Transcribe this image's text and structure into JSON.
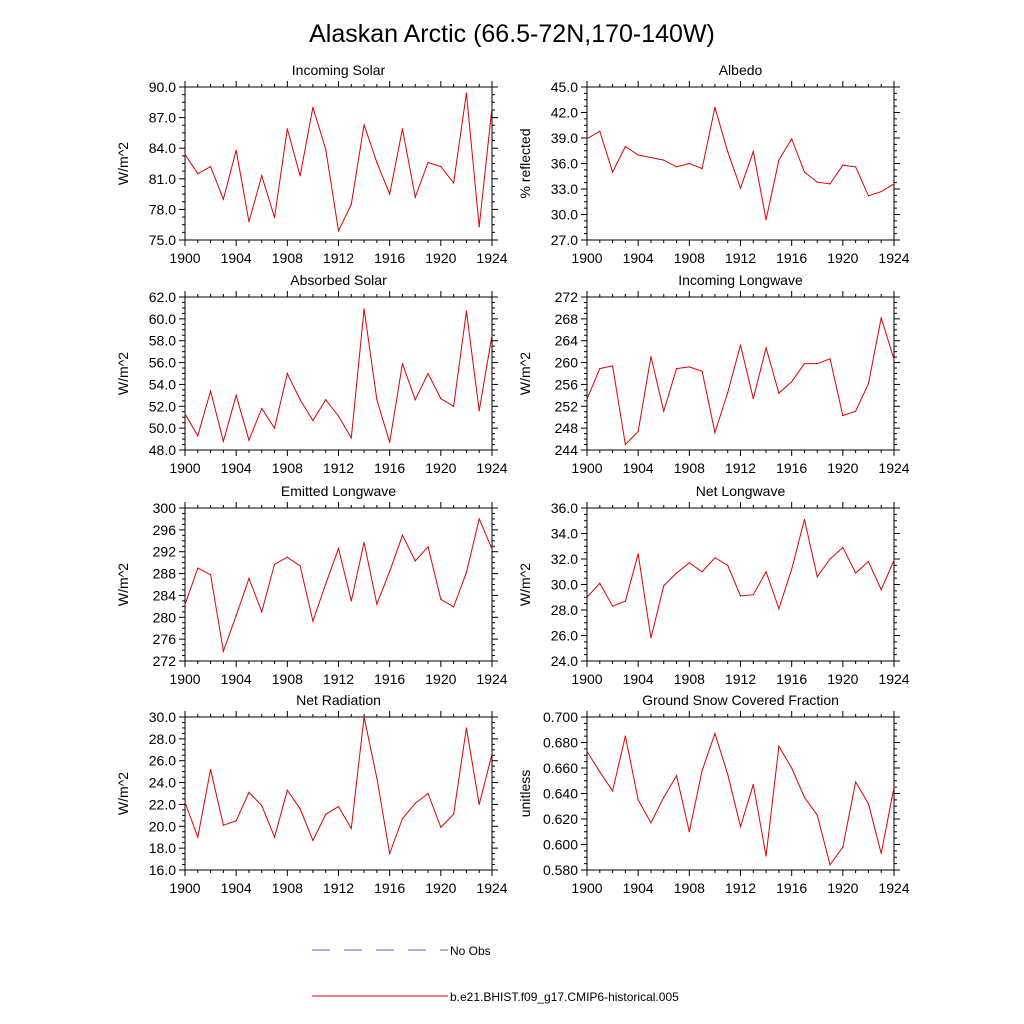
{
  "figure": {
    "title": "Alaskan Arctic (66.5-72N,170-140W)"
  },
  "legend": {
    "obs_label": "No Obs",
    "model_label": "b.e21.BHIST.f09_g17.CMIP6-historical.005",
    "obs_color": "#5b5bc8",
    "model_color": "#e00000"
  },
  "chart_data": [
    {
      "type": "line",
      "title": "Incoming Solar",
      "ylabel": "W/m^2",
      "xlim": [
        1900,
        1924
      ],
      "ylim": [
        75.0,
        90.0
      ],
      "xticks": [
        "1900",
        "1904",
        "1908",
        "1912",
        "1916",
        "1920",
        "1924"
      ],
      "yticks": [
        "75.0",
        "78.0",
        "81.0",
        "84.0",
        "87.0",
        "90.0"
      ],
      "x": [
        1900,
        1901,
        1902,
        1903,
        1904,
        1905,
        1906,
        1907,
        1908,
        1909,
        1910,
        1911,
        1912,
        1913,
        1914,
        1915,
        1916,
        1917,
        1918,
        1919,
        1920,
        1921,
        1922,
        1923,
        1924
      ],
      "values": [
        83.4,
        81.5,
        82.2,
        79.0,
        83.8,
        76.8,
        81.3,
        77.2,
        85.9,
        81.3,
        88.0,
        83.9,
        75.9,
        78.5,
        86.3,
        82.6,
        79.5,
        85.9,
        79.2,
        82.6,
        82.2,
        80.6,
        89.4,
        76.3,
        88.0
      ]
    },
    {
      "type": "line",
      "title": "Albedo",
      "ylabel": "% reflected",
      "xlim": [
        1900,
        1924
      ],
      "ylim": [
        27.0,
        45.0
      ],
      "xticks": [
        "1900",
        "1904",
        "1908",
        "1912",
        "1916",
        "1920",
        "1924"
      ],
      "yticks": [
        "27.0",
        "30.0",
        "33.0",
        "36.0",
        "39.0",
        "42.0",
        "45.0"
      ],
      "x": [
        1900,
        1901,
        1902,
        1903,
        1904,
        1905,
        1906,
        1907,
        1908,
        1909,
        1910,
        1911,
        1912,
        1913,
        1914,
        1915,
        1916,
        1917,
        1918,
        1919,
        1920,
        1921,
        1922,
        1923,
        1924
      ],
      "values": [
        38.9,
        39.8,
        35.0,
        38.0,
        37.0,
        36.7,
        36.4,
        35.6,
        36.0,
        35.4,
        42.6,
        37.4,
        33.1,
        37.4,
        29.4,
        36.4,
        38.9,
        35.0,
        33.8,
        33.6,
        35.8,
        35.6,
        32.2,
        32.7,
        33.6
      ]
    },
    {
      "type": "line",
      "title": "Absorbed Solar",
      "ylabel": "W/m^2",
      "xlim": [
        1900,
        1924
      ],
      "ylim": [
        48.0,
        62.0
      ],
      "xticks": [
        "1900",
        "1904",
        "1908",
        "1912",
        "1916",
        "1920",
        "1924"
      ],
      "yticks": [
        "48.0",
        "50.0",
        "52.0",
        "54.0",
        "56.0",
        "58.0",
        "60.0",
        "62.0"
      ],
      "x": [
        1900,
        1901,
        1902,
        1903,
        1904,
        1905,
        1906,
        1907,
        1908,
        1909,
        1910,
        1911,
        1912,
        1913,
        1914,
        1915,
        1916,
        1917,
        1918,
        1919,
        1920,
        1921,
        1922,
        1923,
        1924
      ],
      "values": [
        51.3,
        49.3,
        53.4,
        48.8,
        53.0,
        48.9,
        51.8,
        50.0,
        55.0,
        52.6,
        50.7,
        52.6,
        51.1,
        49.1,
        60.9,
        52.6,
        48.7,
        55.9,
        52.6,
        55.0,
        52.7,
        52.0,
        60.7,
        51.6,
        58.5
      ]
    },
    {
      "type": "line",
      "title": "Incoming Longwave",
      "ylabel": "W/m^2",
      "xlim": [
        1900,
        1924
      ],
      "ylim": [
        244,
        272
      ],
      "xticks": [
        "1900",
        "1904",
        "1908",
        "1912",
        "1916",
        "1920",
        "1924"
      ],
      "yticks": [
        "244",
        "248",
        "252",
        "256",
        "260",
        "264",
        "268",
        "272"
      ],
      "x": [
        1900,
        1901,
        1902,
        1903,
        1904,
        1905,
        1906,
        1907,
        1908,
        1909,
        1910,
        1911,
        1912,
        1913,
        1914,
        1915,
        1916,
        1917,
        1918,
        1919,
        1920,
        1921,
        1922,
        1923,
        1924
      ],
      "values": [
        253.3,
        258.9,
        259.4,
        245.0,
        247.4,
        261.1,
        251.1,
        258.9,
        259.2,
        258.4,
        247.2,
        254.5,
        263.2,
        253.4,
        262.7,
        254.4,
        256.5,
        259.8,
        259.8,
        260.7,
        250.3,
        251.1,
        256.1,
        268.2,
        260.6
      ]
    },
    {
      "type": "line",
      "title": "Emitted Longwave",
      "ylabel": "W/m^2",
      "xlim": [
        1900,
        1924
      ],
      "ylim": [
        272,
        300
      ],
      "xticks": [
        "1900",
        "1904",
        "1908",
        "1912",
        "1916",
        "1920",
        "1924"
      ],
      "yticks": [
        "272",
        "276",
        "280",
        "284",
        "288",
        "292",
        "296",
        "300"
      ],
      "x": [
        1900,
        1901,
        1902,
        1903,
        1904,
        1905,
        1906,
        1907,
        1908,
        1909,
        1910,
        1911,
        1912,
        1913,
        1914,
        1915,
        1916,
        1917,
        1918,
        1919,
        1920,
        1921,
        1922,
        1923,
        1924
      ],
      "values": [
        282.3,
        289.0,
        287.8,
        273.8,
        280.3,
        287.1,
        281.0,
        289.7,
        291.0,
        289.4,
        279.3,
        286.1,
        292.6,
        283.0,
        293.7,
        282.4,
        288.4,
        295.0,
        290.3,
        292.9,
        283.3,
        281.9,
        288.2,
        298.0,
        292.5
      ]
    },
    {
      "type": "line",
      "title": "Net Longwave",
      "ylabel": "W/m^2",
      "xlim": [
        1900,
        1924
      ],
      "ylim": [
        24.0,
        36.0
      ],
      "xticks": [
        "1900",
        "1904",
        "1908",
        "1912",
        "1916",
        "1920",
        "1924"
      ],
      "yticks": [
        "24.0",
        "26.0",
        "28.0",
        "30.0",
        "32.0",
        "34.0",
        "36.0"
      ],
      "x": [
        1900,
        1901,
        1902,
        1903,
        1904,
        1905,
        1906,
        1907,
        1908,
        1909,
        1910,
        1911,
        1912,
        1913,
        1914,
        1915,
        1916,
        1917,
        1918,
        1919,
        1920,
        1921,
        1922,
        1923,
        1924
      ],
      "values": [
        29.0,
        30.1,
        28.3,
        28.7,
        32.4,
        25.8,
        29.9,
        30.9,
        31.7,
        31.0,
        32.1,
        31.5,
        29.1,
        29.2,
        31.0,
        28.1,
        31.2,
        35.1,
        30.6,
        32.0,
        32.9,
        30.9,
        31.8,
        29.6,
        31.9
      ]
    },
    {
      "type": "line",
      "title": "Net Radiation",
      "ylabel": "W/m^2",
      "xlim": [
        1900,
        1924
      ],
      "ylim": [
        16.0,
        30.0
      ],
      "xticks": [
        "1900",
        "1904",
        "1908",
        "1912",
        "1916",
        "1920",
        "1924"
      ],
      "yticks": [
        "16.0",
        "18.0",
        "20.0",
        "22.0",
        "24.0",
        "26.0",
        "28.0",
        "30.0"
      ],
      "x": [
        1900,
        1901,
        1902,
        1903,
        1904,
        1905,
        1906,
        1907,
        1908,
        1909,
        1910,
        1911,
        1912,
        1913,
        1914,
        1915,
        1916,
        1917,
        1918,
        1919,
        1920,
        1921,
        1922,
        1923,
        1924
      ],
      "values": [
        22.2,
        19.0,
        25.2,
        20.1,
        20.5,
        23.1,
        21.9,
        19.0,
        23.3,
        21.6,
        18.7,
        21.1,
        21.8,
        19.8,
        30.0,
        24.4,
        17.5,
        20.7,
        22.1,
        23.0,
        19.9,
        21.1,
        29.0,
        22.0,
        26.6
      ]
    },
    {
      "type": "line",
      "title": "Ground Snow Covered Fraction",
      "ylabel": "unitless",
      "xlim": [
        1900,
        1924
      ],
      "ylim": [
        0.58,
        0.7
      ],
      "xticks": [
        "1900",
        "1904",
        "1908",
        "1912",
        "1916",
        "1920",
        "1924"
      ],
      "yticks": [
        "0.580",
        "0.600",
        "0.620",
        "0.640",
        "0.660",
        "0.680",
        "0.700"
      ],
      "x": [
        1900,
        1901,
        1902,
        1903,
        1904,
        1905,
        1906,
        1907,
        1908,
        1909,
        1910,
        1911,
        1912,
        1913,
        1914,
        1915,
        1916,
        1917,
        1918,
        1919,
        1920,
        1921,
        1922,
        1923,
        1924
      ],
      "values": [
        0.673,
        0.657,
        0.642,
        0.685,
        0.635,
        0.617,
        0.637,
        0.654,
        0.61,
        0.658,
        0.687,
        0.655,
        0.614,
        0.647,
        0.591,
        0.677,
        0.66,
        0.637,
        0.623,
        0.584,
        0.598,
        0.649,
        0.632,
        0.593,
        0.645
      ]
    }
  ]
}
